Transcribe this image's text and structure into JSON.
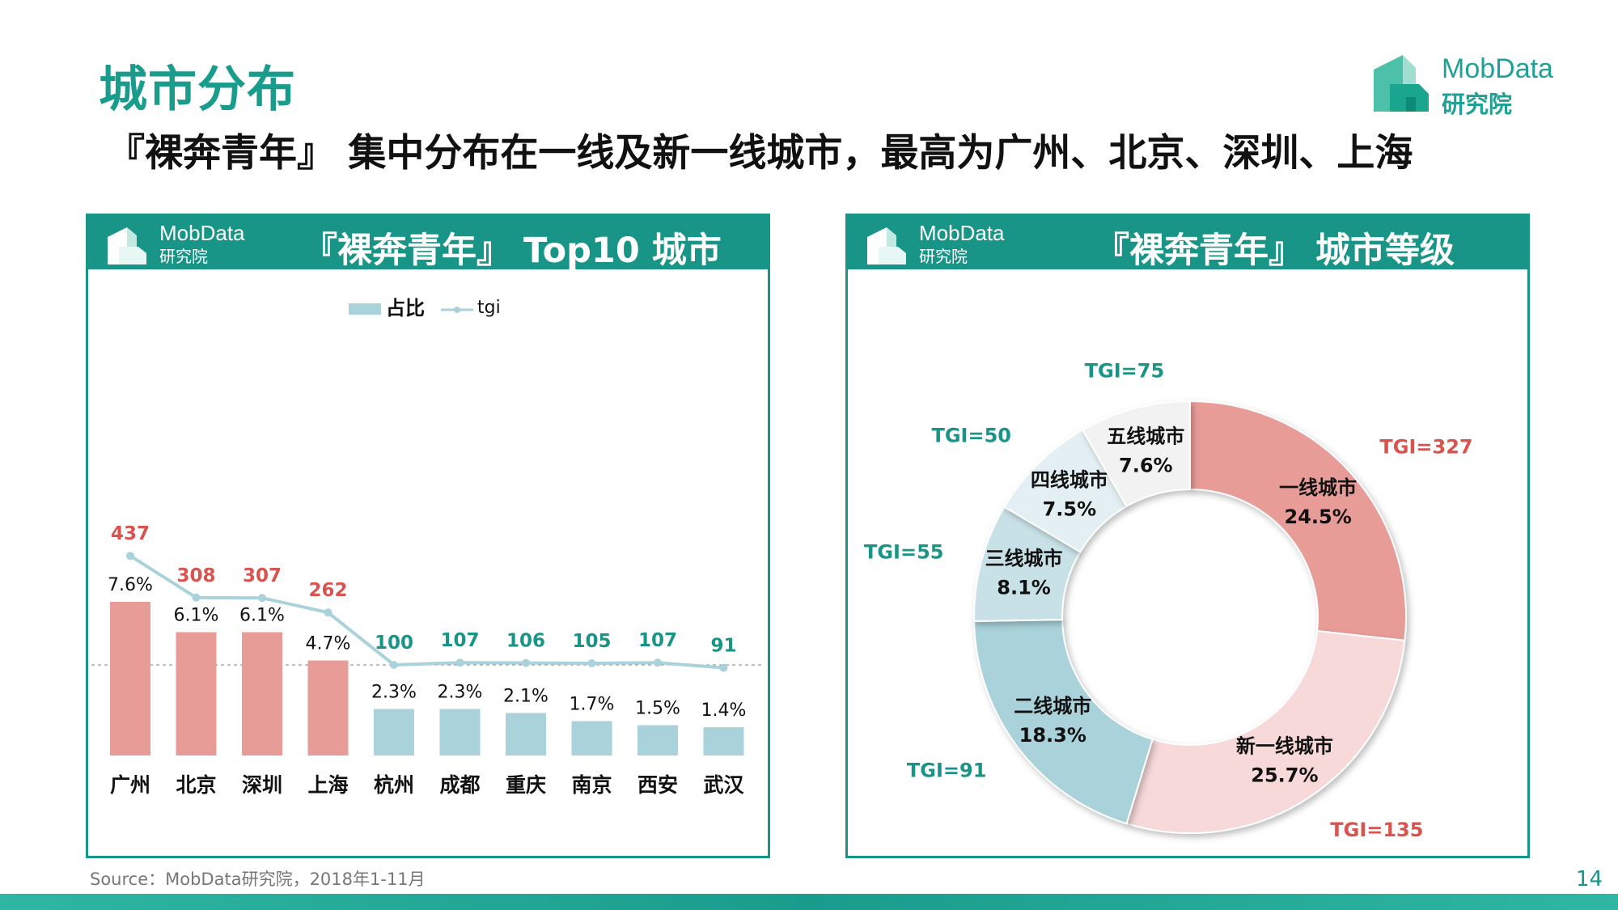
{
  "header": {
    "title": "城市分布",
    "subtitle": "『裸奔青年』 集中分布在一线及新一线城市，最高为广州、北京、深圳、上海"
  },
  "brand": {
    "name": "MobData",
    "sub": "研究院"
  },
  "left_panel": {
    "logo_name": "MobData",
    "logo_sub": "研究院",
    "title": "『裸奔青年』 Top10 城市"
  },
  "right_panel": {
    "logo_name": "MobData",
    "logo_sub": "研究院",
    "title": "『裸奔青年』 城市等级"
  },
  "footer": {
    "source": "Source：MobData研究院，2018年1-11月",
    "page": "14"
  },
  "colors": {
    "teal": "#199587",
    "pink": "#e89c98",
    "light_pink": "#f7d9da",
    "light_blue": "#a9d2da",
    "pale_blue": "#c8e1e7",
    "paler_blue": "#e3eff3",
    "palest": "#f2f2f2",
    "line": "#a9d2da"
  },
  "chart_data": [
    {
      "type": "bar",
      "legend": [
        "占比",
        "tgi"
      ],
      "categories": [
        "广州",
        "北京",
        "深圳",
        "上海",
        "杭州",
        "成都",
        "重庆",
        "南京",
        "西安",
        "武汉"
      ],
      "series": [
        {
          "name": "占比",
          "type": "bar",
          "values": [
            7.6,
            6.1,
            6.1,
            4.7,
            2.3,
            2.3,
            2.1,
            1.7,
            1.5,
            1.4
          ],
          "labels": [
            "7.6%",
            "6.1%",
            "6.1%",
            "4.7%",
            "2.3%",
            "2.3%",
            "2.1%",
            "1.7%",
            "1.5%",
            "1.4%"
          ]
        },
        {
          "name": "tgi",
          "type": "line",
          "values": [
            437,
            308,
            307,
            262,
            100,
            107,
            106,
            105,
            107,
            91
          ],
          "labels": [
            "437",
            "308",
            "307",
            "262",
            "100",
            "107",
            "106",
            "105",
            "107",
            "91"
          ]
        }
      ],
      "reference_line": 100,
      "highlight_count": 4
    },
    {
      "type": "pie",
      "donut": true,
      "slices": [
        {
          "label": "一线城市",
          "value": 24.5,
          "pct": "24.5%",
          "tgi": "TGI=327"
        },
        {
          "label": "新一线城市",
          "value": 25.7,
          "pct": "25.7%",
          "tgi": "TGI=135"
        },
        {
          "label": "二线城市",
          "value": 18.3,
          "pct": "18.3%",
          "tgi": "TGI=91"
        },
        {
          "label": "三线城市",
          "value": 8.1,
          "pct": "8.1%",
          "tgi": "TGI=55"
        },
        {
          "label": "四线城市",
          "value": 7.5,
          "pct": "7.5%",
          "tgi": "TGI=50"
        },
        {
          "label": "五线城市",
          "value": 7.6,
          "pct": "7.6%",
          "tgi": "TGI=75"
        }
      ]
    }
  ]
}
